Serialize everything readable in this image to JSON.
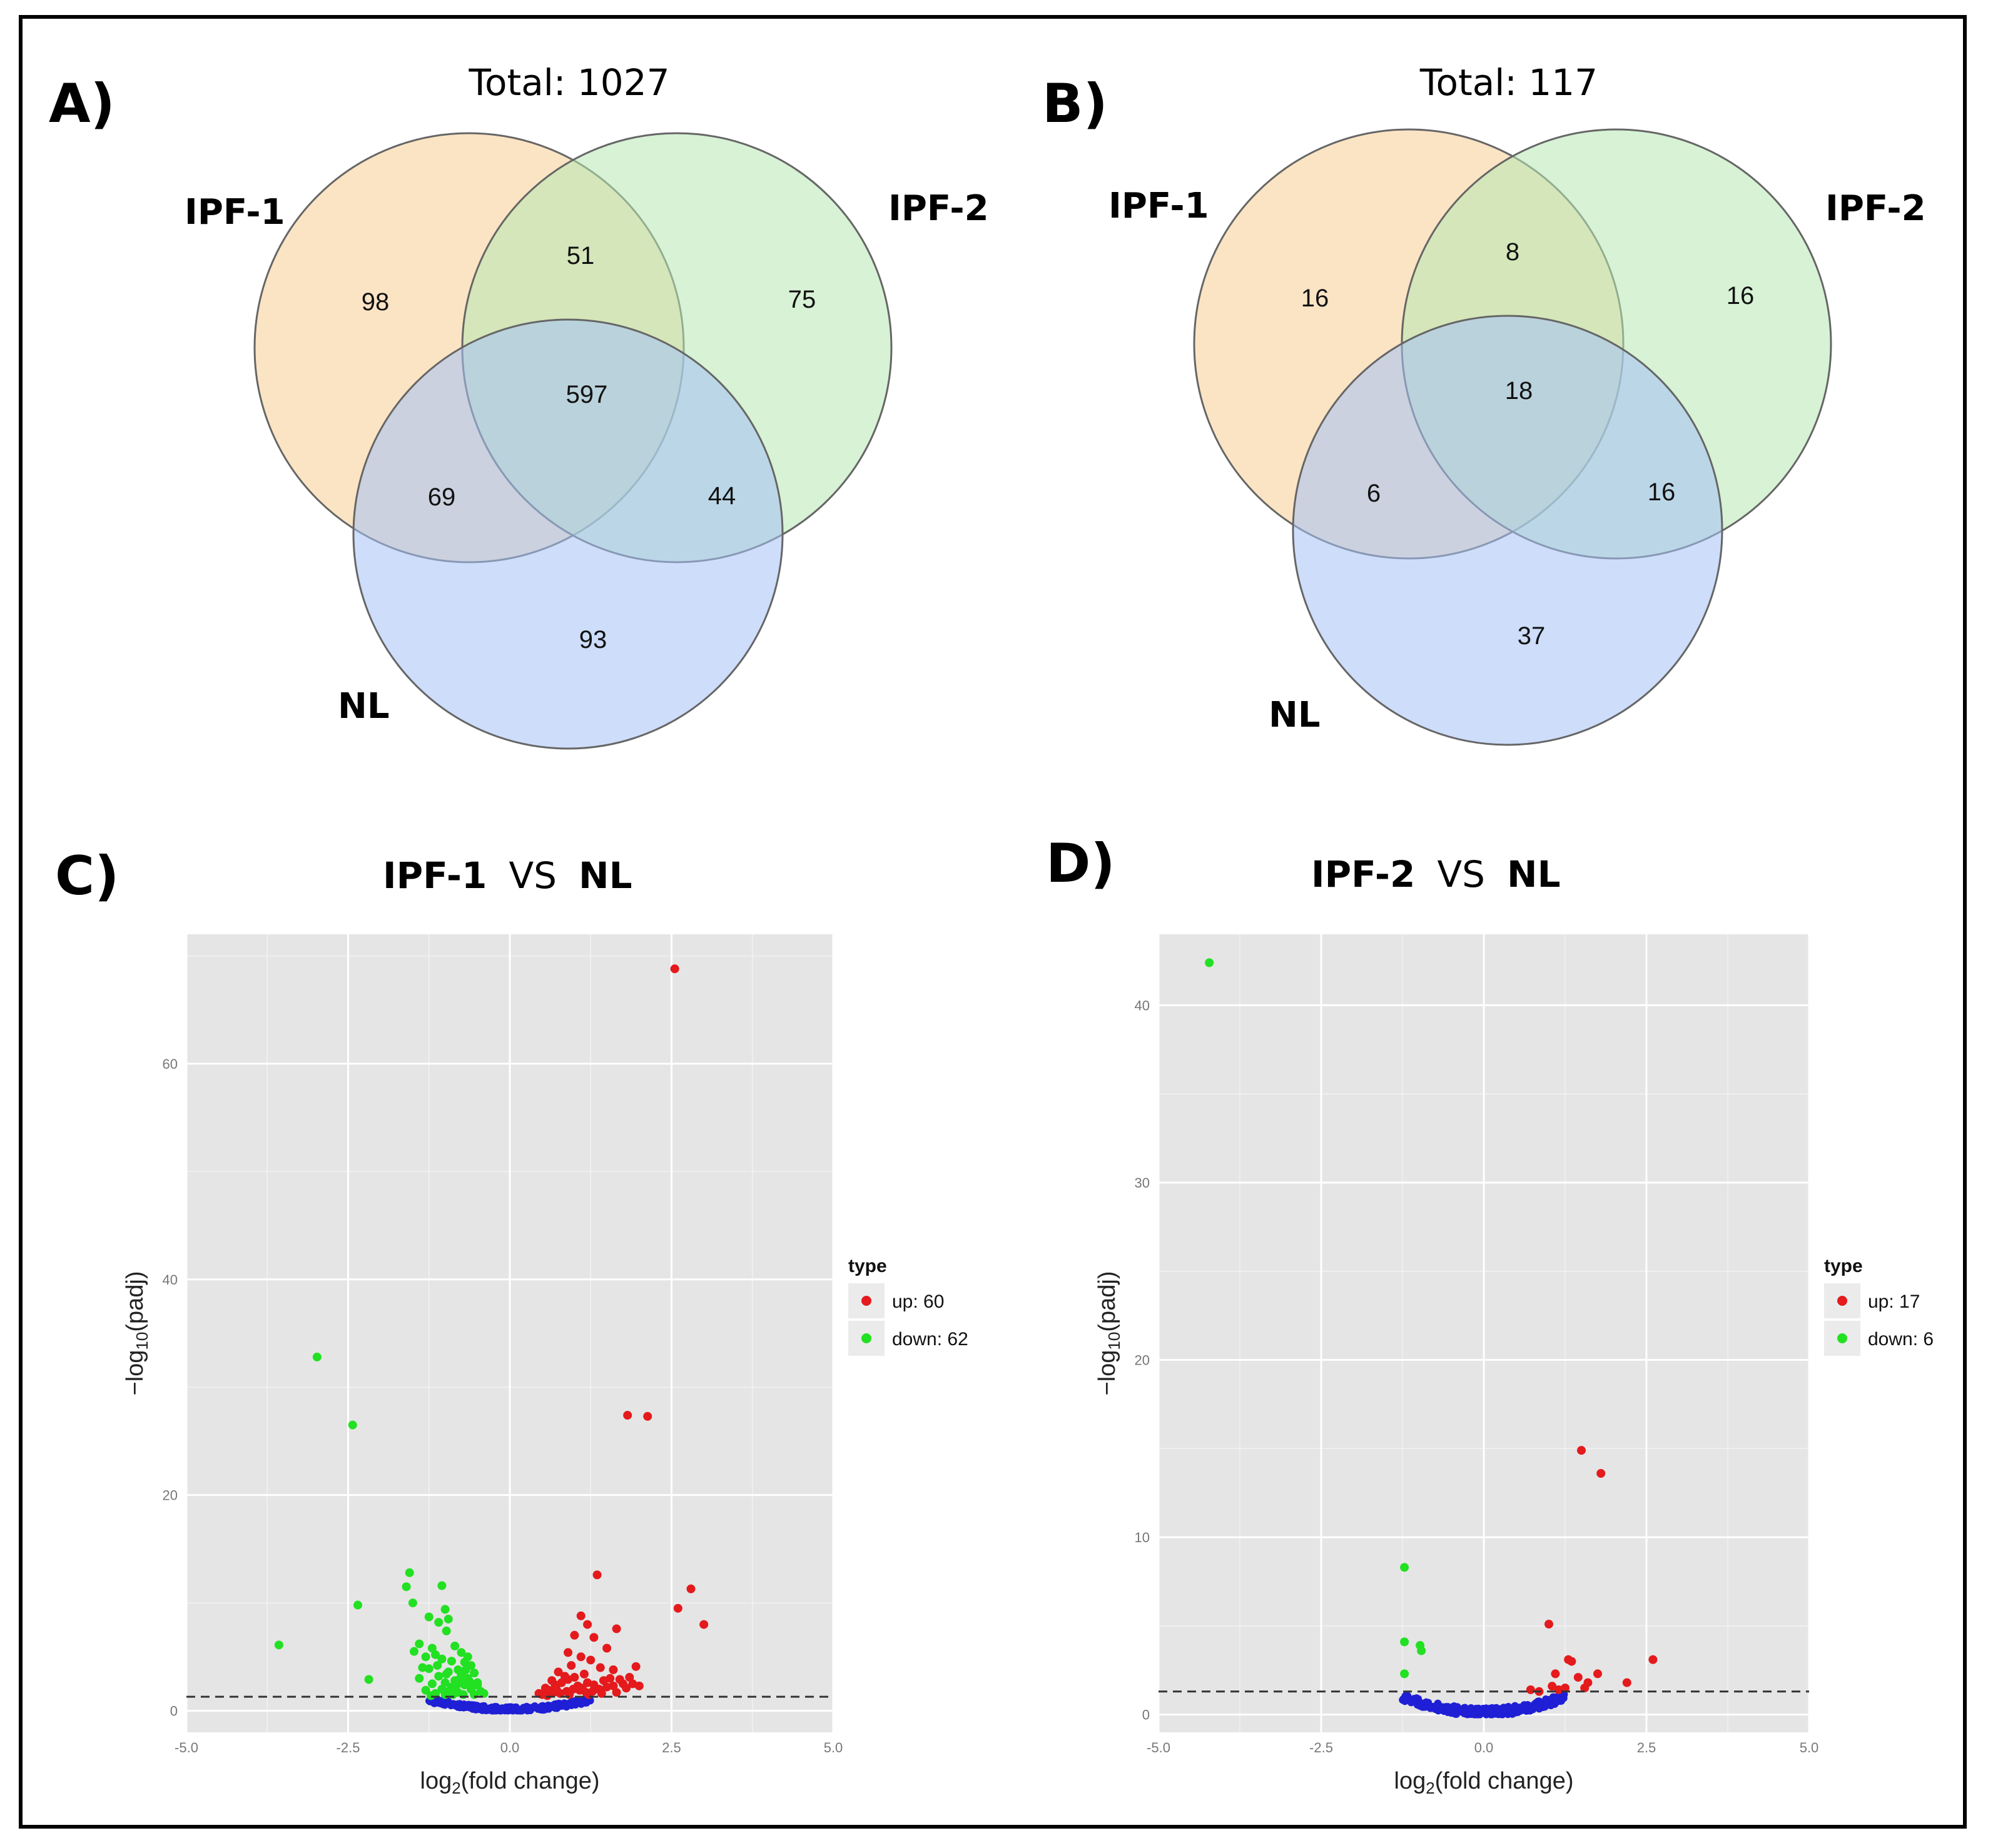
{
  "colors": {
    "ipf1_fill": "#f8cd94",
    "ipf2_fill": "#b7e8b3",
    "nl_fill": "#a4c1f5",
    "up": "#e41a1c",
    "down": "#22e022",
    "nochange": "#1f1fd6",
    "plot_bg": "#e5e5e5",
    "grid": "#ffffff"
  },
  "panels": {
    "a": {
      "letter": "A)"
    },
    "b": {
      "letter": "B)"
    },
    "c": {
      "letter": "C)"
    },
    "d": {
      "letter": "D)"
    }
  },
  "venn_a": {
    "total_label": "Total: 1027",
    "set1": "IPF-1",
    "set2": "IPF-2",
    "set3": "NL",
    "only1": "98",
    "only2": "75",
    "only3": "93",
    "s12": "51",
    "s13": "69",
    "s23": "44",
    "s123": "597"
  },
  "venn_b": {
    "total_label": "Total: 117",
    "set1": "IPF-1",
    "set2": "IPF-2",
    "set3": "NL",
    "only1": "16",
    "only2": "16",
    "only3": "37",
    "s12": "8",
    "s13": "6",
    "s23": "16",
    "s123": "18"
  },
  "volcano_c": {
    "title_left": "IPF-1",
    "title_mid": "VS",
    "title_right": "NL"
  },
  "volcano_d": {
    "title_left": "IPF-2",
    "title_mid": "VS",
    "title_right": "NL"
  },
  "chart_data": [
    {
      "type": "scatter",
      "id": "volcano_c",
      "title": "IPF-1 VS NL",
      "xlabel": "log2(fold change)",
      "ylabel": "-log10(padj)",
      "xlim": [
        -5,
        5
      ],
      "ylim": [
        -2,
        72
      ],
      "xticks": [
        -5.0,
        -2.5,
        0.0,
        2.5,
        5.0
      ],
      "xtick_labels": [
        "-5.0",
        "-2.5",
        "0.0",
        "2.5",
        "5.0"
      ],
      "yticks": [
        0,
        20,
        40,
        60
      ],
      "ytick_labels": [
        "0",
        "20",
        "40",
        "60"
      ],
      "threshold": 1.3,
      "legend": {
        "title": "type",
        "up_label": "up: 60",
        "down_label": "down: 62",
        "position": "right"
      },
      "up": [
        [
          2.55,
          68.8
        ],
        [
          1.82,
          27.4
        ],
        [
          2.13,
          27.3
        ],
        [
          1.35,
          12.6
        ],
        [
          2.8,
          11.3
        ],
        [
          2.6,
          9.5
        ],
        [
          3.0,
          8.0
        ],
        [
          1.1,
          8.8
        ],
        [
          1.2,
          8.0
        ],
        [
          1.65,
          7.6
        ],
        [
          1.0,
          7.0
        ],
        [
          1.3,
          6.8
        ],
        [
          1.5,
          5.8
        ],
        [
          0.9,
          5.4
        ],
        [
          1.1,
          5.0
        ],
        [
          1.25,
          4.7
        ],
        [
          0.95,
          4.2
        ],
        [
          1.4,
          4.0
        ],
        [
          1.6,
          3.8
        ],
        [
          1.95,
          4.1
        ],
        [
          0.75,
          3.6
        ],
        [
          0.85,
          3.2
        ],
        [
          1.15,
          3.4
        ],
        [
          1.55,
          3.0
        ],
        [
          1.7,
          2.9
        ],
        [
          1.85,
          3.1
        ],
        [
          1.9,
          2.5
        ],
        [
          0.65,
          2.8
        ],
        [
          0.7,
          2.4
        ],
        [
          0.8,
          2.6
        ],
        [
          0.9,
          2.9
        ],
        [
          1.0,
          3.1
        ],
        [
          1.05,
          2.3
        ],
        [
          1.2,
          2.6
        ],
        [
          1.3,
          2.4
        ],
        [
          1.45,
          2.8
        ],
        [
          1.5,
          2.2
        ],
        [
          1.6,
          2.3
        ],
        [
          1.75,
          2.5
        ],
        [
          1.8,
          2.1
        ],
        [
          2.0,
          2.3
        ],
        [
          0.55,
          2.1
        ],
        [
          0.6,
          1.9
        ],
        [
          0.68,
          1.7
        ],
        [
          0.78,
          1.6
        ],
        [
          0.88,
          1.8
        ],
        [
          0.98,
          2.0
        ],
        [
          1.08,
          1.9
        ],
        [
          1.18,
          1.7
        ],
        [
          1.28,
          1.8
        ],
        [
          1.38,
          2.0
        ],
        [
          0.5,
          1.5
        ],
        [
          0.58,
          1.4
        ],
        [
          0.72,
          2.0
        ],
        [
          0.92,
          1.5
        ],
        [
          1.12,
          2.1
        ],
        [
          1.22,
          1.5
        ],
        [
          1.42,
          1.6
        ],
        [
          1.65,
          1.7
        ],
        [
          0.45,
          1.6
        ]
      ],
      "down": [
        [
          -2.98,
          32.8
        ],
        [
          -2.43,
          26.5
        ],
        [
          -2.35,
          9.8
        ],
        [
          -3.57,
          6.1
        ],
        [
          -2.18,
          2.9
        ],
        [
          -1.55,
          12.8
        ],
        [
          -1.6,
          11.5
        ],
        [
          -1.05,
          11.6
        ],
        [
          -1.5,
          10.0
        ],
        [
          -1.0,
          9.4
        ],
        [
          -1.25,
          8.7
        ],
        [
          -0.95,
          8.5
        ],
        [
          -1.1,
          8.2
        ],
        [
          -0.98,
          7.4
        ],
        [
          -1.4,
          6.2
        ],
        [
          -1.48,
          5.5
        ],
        [
          -1.2,
          5.8
        ],
        [
          -0.85,
          6.0
        ],
        [
          -0.75,
          5.4
        ],
        [
          -1.15,
          5.2
        ],
        [
          -1.3,
          5.0
        ],
        [
          -0.65,
          5.0
        ],
        [
          -1.05,
          4.8
        ],
        [
          -0.9,
          4.6
        ],
        [
          -0.7,
          4.5
        ],
        [
          -0.6,
          4.2
        ],
        [
          -1.35,
          4.0
        ],
        [
          -1.25,
          3.9
        ],
        [
          -0.8,
          3.8
        ],
        [
          -0.95,
          3.6
        ],
        [
          -0.55,
          3.5
        ],
        [
          -0.75,
          3.3
        ],
        [
          -1.1,
          3.2
        ],
        [
          -1.4,
          3.0
        ],
        [
          -0.65,
          3.0
        ],
        [
          -0.85,
          2.8
        ],
        [
          -1.0,
          2.6
        ],
        [
          -1.2,
          2.5
        ],
        [
          -0.5,
          2.4
        ],
        [
          -0.7,
          2.4
        ],
        [
          -0.9,
          2.2
        ],
        [
          -1.05,
          2.0
        ],
        [
          -1.3,
          1.9
        ],
        [
          -0.6,
          2.0
        ],
        [
          -0.45,
          1.8
        ],
        [
          -0.8,
          1.7
        ],
        [
          -0.95,
          1.8
        ],
        [
          -1.15,
          1.6
        ],
        [
          -0.55,
          1.5
        ],
        [
          -0.72,
          1.5
        ],
        [
          -0.88,
          1.5
        ],
        [
          -1.0,
          1.5
        ],
        [
          -1.22,
          1.4
        ],
        [
          -0.4,
          1.6
        ],
        [
          -0.5,
          2.6
        ],
        [
          -0.62,
          2.7
        ],
        [
          -0.78,
          2.9
        ],
        [
          -0.98,
          3.4
        ],
        [
          -1.12,
          4.2
        ],
        [
          -0.68,
          3.8
        ],
        [
          -0.58,
          2.2
        ],
        [
          -0.82,
          2.4
        ]
      ]
    },
    {
      "type": "scatter",
      "id": "volcano_d",
      "title": "IPF-2 VS NL",
      "xlabel": "log2(fold change)",
      "ylabel": "-log10(padj)",
      "xlim": [
        -5,
        5
      ],
      "ylim": [
        -1,
        44
      ],
      "xticks": [
        -5.0,
        -2.5,
        0.0,
        2.5,
        5.0
      ],
      "xtick_labels": [
        "-5.0",
        "-2.5",
        "0.0",
        "2.5",
        "5.0"
      ],
      "yticks": [
        0,
        10,
        20,
        30,
        40
      ],
      "ytick_labels": [
        "0",
        "10",
        "20",
        "30",
        "40"
      ],
      "threshold": 1.3,
      "legend": {
        "title": "type",
        "up_label": "up: 17",
        "down_label": "down: 6",
        "position": "right"
      },
      "up": [
        [
          1.5,
          14.9
        ],
        [
          1.8,
          13.6
        ],
        [
          1.0,
          5.1
        ],
        [
          2.6,
          3.1
        ],
        [
          1.3,
          3.1
        ],
        [
          1.35,
          3.0
        ],
        [
          1.75,
          2.3
        ],
        [
          1.45,
          2.1
        ],
        [
          1.1,
          2.3
        ],
        [
          1.6,
          1.8
        ],
        [
          2.2,
          1.8
        ],
        [
          1.15,
          1.4
        ],
        [
          1.55,
          1.5
        ],
        [
          0.72,
          1.4
        ],
        [
          1.05,
          1.6
        ],
        [
          1.25,
          1.5
        ],
        [
          0.85,
          1.3
        ]
      ],
      "down": [
        [
          -4.22,
          42.4
        ],
        [
          -1.22,
          8.3
        ],
        [
          -1.22,
          4.1
        ],
        [
          -0.98,
          3.9
        ],
        [
          -0.96,
          3.6
        ],
        [
          -1.22,
          2.3
        ]
      ]
    }
  ]
}
